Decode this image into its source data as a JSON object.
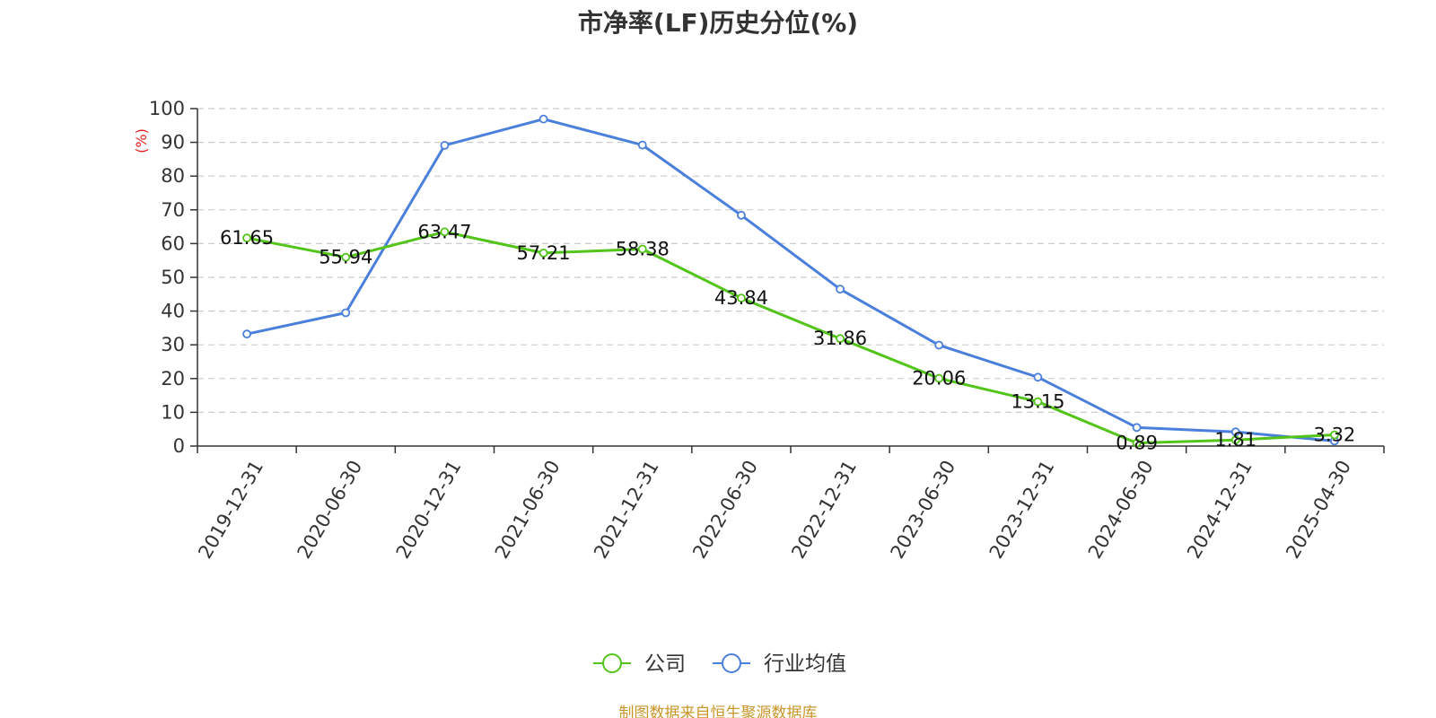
{
  "chart_data": {
    "type": "line",
    "title": "市净率(LF)历史分位(%)",
    "ylabel": "(%)",
    "xlabel": "",
    "ylim": [
      0,
      100
    ],
    "yticks": [
      0,
      10,
      20,
      30,
      40,
      50,
      60,
      70,
      80,
      90,
      100
    ],
    "grid": true,
    "legend_position": "bottom-center",
    "categories": [
      "2019-12-31",
      "2020-06-30",
      "2020-12-31",
      "2021-06-30",
      "2021-12-31",
      "2022-06-30",
      "2022-12-31",
      "2023-06-30",
      "2023-12-31",
      "2024-06-30",
      "2024-12-31",
      "2025-04-30"
    ],
    "series": [
      {
        "name": "公司",
        "color": "#52c41a",
        "show_labels": true,
        "values": [
          61.65,
          55.94,
          63.47,
          57.21,
          58.38,
          43.84,
          31.86,
          20.06,
          13.15,
          0.89,
          1.81,
          3.32
        ]
      },
      {
        "name": "行业均值",
        "color": "#4a7fdc",
        "show_labels": false,
        "values": [
          33.2,
          39.5,
          89.1,
          96.9,
          89.2,
          68.4,
          46.5,
          29.9,
          20.4,
          5.5,
          4.2,
          1.5
        ]
      }
    ]
  },
  "footer": {
    "source": "制图数据来自恒生聚源数据库"
  }
}
